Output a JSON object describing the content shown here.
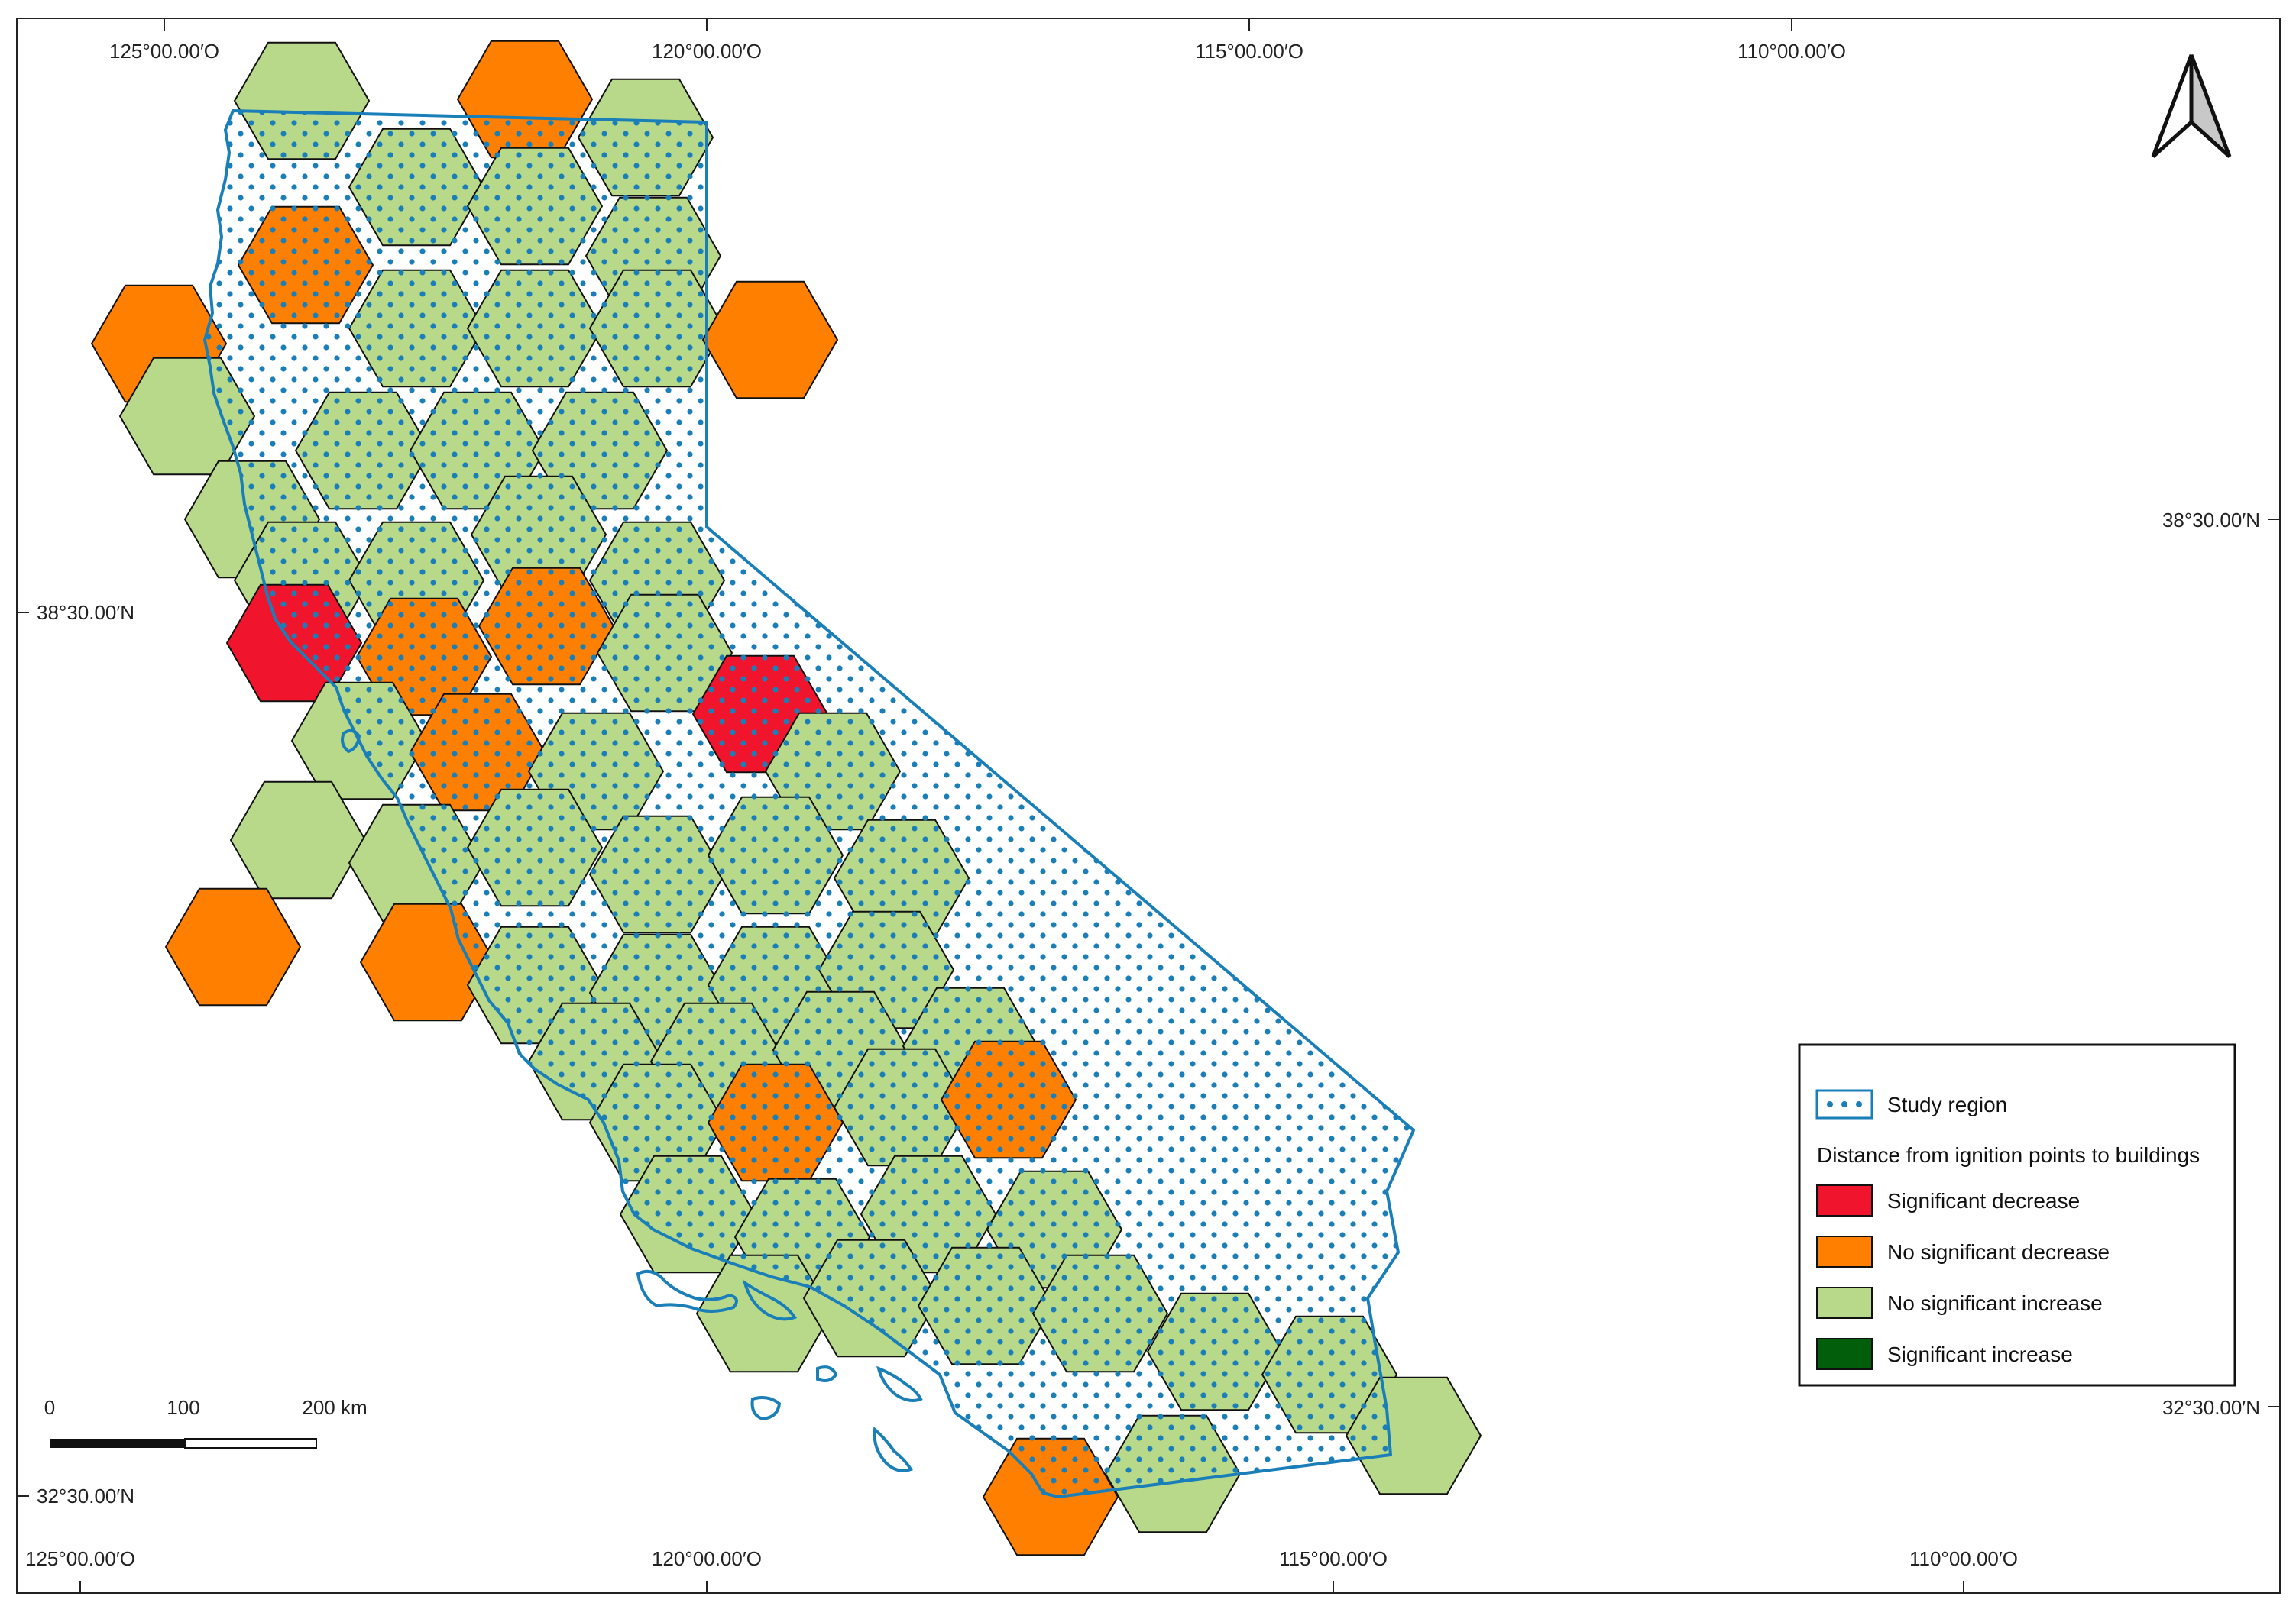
{
  "map": {
    "top_longitude_labels": [
      "125°00.00′O",
      "120°00.00′O",
      "115°00.00′O",
      "110°00.00′O"
    ],
    "bottom_longitude_labels": [
      "125°00.00′O",
      "120°00.00′O",
      "115°00.00′O",
      "110°00.00′O"
    ],
    "left_latitude_labels": [
      "38°30.00′N",
      "32°30.00′N"
    ],
    "right_latitude_labels": [
      "38°30.00′N",
      "32°30.00′N"
    ]
  },
  "legend": {
    "study_region": "Study region",
    "heading": "Distance from ignition points to buildings",
    "items": [
      {
        "label": "Significant decrease",
        "color": "#f0142d"
      },
      {
        "label": "No significant decrease",
        "color": "#ff8000"
      },
      {
        "label": "No significant increase",
        "color": "#b8d98a"
      },
      {
        "label": "Significant increase",
        "color": "#035e0c"
      }
    ]
  },
  "scale_bar": {
    "labels": [
      "0",
      "100",
      "200 km"
    ]
  },
  "colors": {
    "study_region_outline": "#1a7fb8",
    "dot": "#1a7fb8",
    "hex_outline": "#111111",
    "frame": "#222222"
  },
  "hex_categories": [
    "green",
    "orange",
    "green",
    "green",
    "orange",
    "green",
    "green",
    "green",
    "orange",
    "green",
    "green",
    "green",
    "green",
    "green",
    "green",
    "green",
    "green",
    "green",
    "green",
    "green",
    "orange",
    "red",
    "orange",
    "orange",
    "green",
    "green",
    "green",
    "green",
    "orange",
    "red",
    "green",
    "green",
    "green",
    "green",
    "green",
    "green",
    "orange",
    "orange",
    "green",
    "green",
    "green",
    "green",
    "orange",
    "green",
    "green",
    "orange",
    "green",
    "green",
    "green",
    "green",
    "green",
    "green",
    "green",
    "green",
    "green",
    "green",
    "green",
    "orange",
    "green",
    "green"
  ],
  "north_arrow": {
    "icon": "north-arrow-icon"
  }
}
